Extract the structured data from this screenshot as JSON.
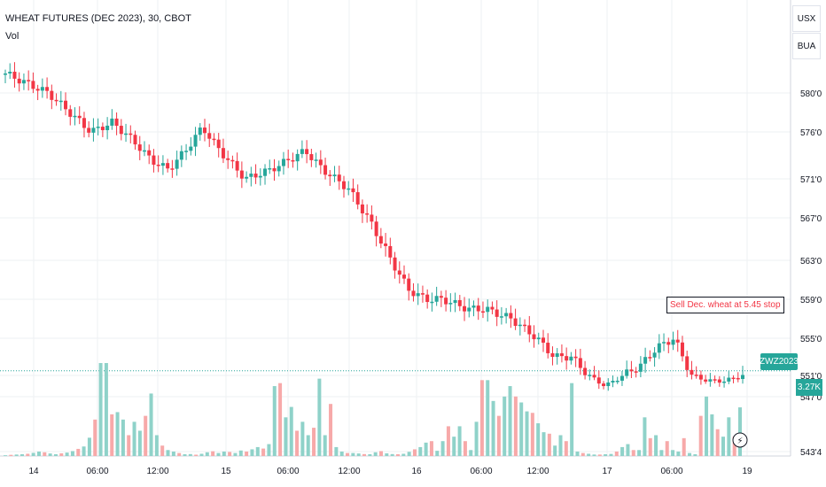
{
  "header": {
    "title": "WHEAT FUTURES (DEC 2023), 30, CBOT",
    "volume_label": "Vol"
  },
  "buttons": {
    "currency": "USX",
    "unit": "BUA"
  },
  "tags": {
    "ticker": "ZWZ2023",
    "volume": "3.27K"
  },
  "annotation": "Sell Dec. wheat at 5.45 stop",
  "colors": {
    "up": "#26a69a",
    "down": "#f23645",
    "vol_up": "#8fd2c9",
    "vol_down": "#f7a9a9",
    "grid": "#eef0f3",
    "axis_text": "#131722"
  },
  "chart_data": {
    "type": "candlestick",
    "title": "WHEAT FUTURES (DEC 2023), 30, CBOT",
    "xlabel": "",
    "ylabel": "",
    "x_ticks": [
      "14",
      "06:00",
      "12:00",
      "15",
      "06:00",
      "12:00",
      "16",
      "06:00",
      "12:00",
      "17",
      "06:00",
      "19"
    ],
    "y_ticks": [
      "580'0",
      "576'0",
      "571'0",
      "567'0",
      "563'0",
      "559'0",
      "555'0",
      "551'0",
      "547'0",
      "543'4"
    ],
    "last_price": 551.5,
    "last_volume": "3.27K",
    "grid": true,
    "series": [
      {
        "name": "Vol",
        "type": "volume",
        "values": [
          50,
          80,
          100,
          120,
          150,
          210,
          300,
          250,
          170,
          120,
          180,
          230,
          330,
          480,
          640,
          1230,
          2450,
          6250,
          6250,
          2800,
          2950,
          2450,
          1400,
          2300,
          1700,
          2700,
          4200,
          1400,
          700,
          400,
          300,
          200,
          120,
          130,
          90,
          150,
          250,
          320,
          200,
          300,
          270,
          200,
          370,
          300,
          450,
          600,
          500,
          800,
          4700,
          4900,
          2600,
          3300,
          1700,
          2300,
          1400,
          1900,
          5200,
          1400,
          3500,
          600,
          300,
          200,
          200,
          170,
          130,
          120,
          250,
          330,
          180,
          130,
          120,
          150,
          280,
          450,
          600,
          900,
          1000,
          350,
          1000,
          2000,
          1300,
          2000,
          1000,
          400,
          2300,
          5100,
          5100,
          3700,
          2700,
          4000,
          4700,
          4000,
          3600,
          3000,
          2900,
          2200,
          1600,
          1500,
          700,
          1400,
          1000,
          4900,
          300,
          200,
          150,
          100,
          100,
          120,
          140,
          300,
          600,
          800,
          400,
          400,
          2600,
          1200,
          1400,
          400,
          1000,
          400,
          300,
          1200,
          200,
          120,
          2700,
          4000,
          2800,
          1800,
          1300,
          2600,
          1300,
          3270
        ]
      }
    ]
  }
}
